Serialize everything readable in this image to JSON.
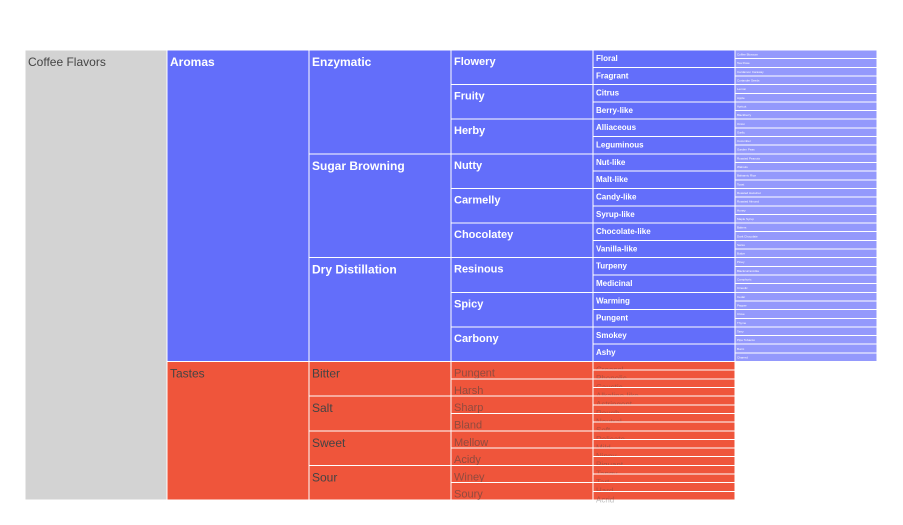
{
  "chart_data": {
    "type": "icicle",
    "root": "Coffee Flavors",
    "colors": {
      "root": "#d3d3d3",
      "aromas": "#636efa",
      "aromas_leaf": "#9499fc",
      "tastes": "#ef553b",
      "tastes_leaf": "#f49584",
      "label_dark": "#444444",
      "label_light": "#ffffff"
    },
    "children": [
      {
        "name": "Aromas",
        "children": [
          {
            "name": "Enzymatic",
            "children": [
              {
                "name": "Flowery",
                "children": [
                  {
                    "name": "Floral",
                    "children": [
                      "Coffee Blossom",
                      "Tea Rose"
                    ]
                  },
                  {
                    "name": "Fragrant",
                    "children": [
                      "Cardamon Caraway",
                      "Coriander Seeds"
                    ]
                  }
                ]
              },
              {
                "name": "Fruity",
                "children": [
                  {
                    "name": "Citrus",
                    "children": [
                      "Lemon",
                      "Apple"
                    ]
                  },
                  {
                    "name": "Berry-like",
                    "children": [
                      "Apricot",
                      "Blackberry"
                    ]
                  }
                ]
              },
              {
                "name": "Herby",
                "children": [
                  {
                    "name": "Alliaceous",
                    "children": [
                      "Onion",
                      "Garlic"
                    ]
                  },
                  {
                    "name": "Leguminous",
                    "children": [
                      "Cucumber",
                      "Garden Peas"
                    ]
                  }
                ]
              }
            ]
          },
          {
            "name": "Sugar Browning",
            "children": [
              {
                "name": "Nutty",
                "children": [
                  {
                    "name": "Nut-like",
                    "children": [
                      "Roasted Peanuts",
                      "Walnuts"
                    ]
                  },
                  {
                    "name": "Malt-like",
                    "children": [
                      "Balsamic Rice",
                      "Toast"
                    ]
                  }
                ]
              },
              {
                "name": "Carmelly",
                "children": [
                  {
                    "name": "Candy-like",
                    "children": [
                      "Roasted Hazelnut",
                      "Roasted Almond"
                    ]
                  },
                  {
                    "name": "Syrup-like",
                    "children": [
                      "Honey",
                      "Maple Syrup"
                    ]
                  }
                ]
              },
              {
                "name": "Chocolatey",
                "children": [
                  {
                    "name": "Chocolate-like",
                    "children": [
                      "Bakers",
                      "Dark Chocolate"
                    ]
                  },
                  {
                    "name": "Vanilla-like",
                    "children": [
                      "Swiss",
                      "Butter"
                    ]
                  }
                ]
              }
            ]
          },
          {
            "name": "Dry Distillation",
            "children": [
              {
                "name": "Resinous",
                "children": [
                  {
                    "name": "Turpeny",
                    "children": [
                      "Piney",
                      "Blackcurrant-like"
                    ]
                  },
                  {
                    "name": "Medicinal",
                    "children": [
                      "Camphoric",
                      "Cineolic"
                    ]
                  }
                ]
              },
              {
                "name": "Spicy",
                "children": [
                  {
                    "name": "Warming",
                    "children": [
                      "Cedar",
                      "Pepper"
                    ]
                  },
                  {
                    "name": "Pungent",
                    "children": [
                      "Clove",
                      "Thyme"
                    ]
                  }
                ]
              },
              {
                "name": "Carbony",
                "children": [
                  {
                    "name": "Smokey",
                    "children": [
                      "Tarry",
                      "Pipe Tobacco"
                    ]
                  },
                  {
                    "name": "Ashy",
                    "children": [
                      "Burnt",
                      "Charred"
                    ]
                  }
                ]
              }
            ]
          }
        ]
      },
      {
        "name": "Tastes",
        "children": [
          {
            "name": "Bitter",
            "children": [
              {
                "name": "Pungent",
                "children": [
                  "Creosol",
                  "Phenolic"
                ]
              },
              {
                "name": "Harsh",
                "children": [
                  "Caustic",
                  "Alkaline-like"
                ]
              }
            ]
          },
          {
            "name": "Salt",
            "children": [
              {
                "name": "Sharp",
                "children": [
                  "Astringent",
                  "Rough"
                ]
              },
              {
                "name": "Bland",
                "children": [
                  "Neutral",
                  "Soft"
                ]
              }
            ]
          },
          {
            "name": "Sweet",
            "children": [
              {
                "name": "Mellow",
                "children": [
                  "Delicate",
                  "Mild"
                ]
              },
              {
                "name": "Acidy",
                "children": [
                  "Nippy",
                  "Piquant"
                ]
              }
            ]
          },
          {
            "name": "Sour",
            "children": [
              {
                "name": "Winey",
                "children": [
                  "Tangy",
                  "Tart"
                ]
              },
              {
                "name": "Soury",
                "children": [
                  "Hard",
                  "Acrid"
                ]
              }
            ]
          }
        ]
      }
    ]
  }
}
